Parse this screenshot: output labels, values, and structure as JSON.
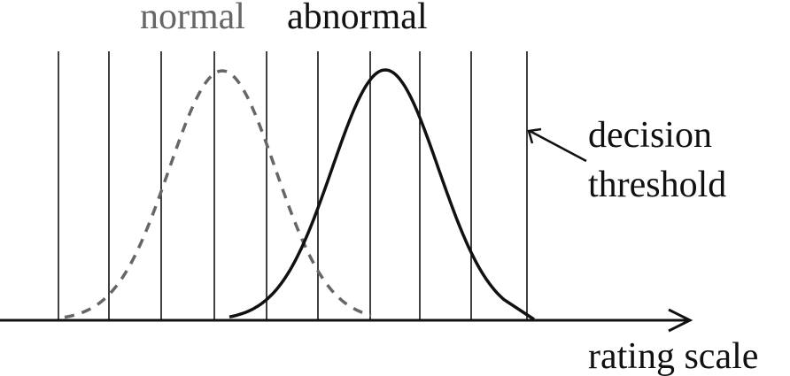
{
  "labels": {
    "normal": "normal",
    "abnormal": "abnormal",
    "decision_threshold_line1": "decision",
    "decision_threshold_line2": "threshold",
    "x_axis": "rating scale"
  },
  "colors": {
    "normal": "#666666",
    "abnormal": "#111111"
  },
  "threshold_count": 10
}
